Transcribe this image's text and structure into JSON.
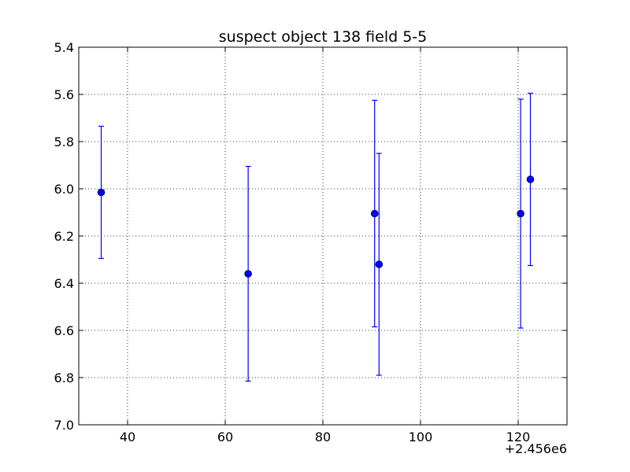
{
  "chart_data": {
    "type": "scatter",
    "title": "suspect object 138 field 5-5",
    "xlabel": "",
    "ylabel": "",
    "x_offset_label": "+2.456e6",
    "xlim": [
      30,
      130
    ],
    "ylim": [
      7.0,
      5.4
    ],
    "y_axis_inverted": true,
    "grid": true,
    "marker_color": "#0000ff",
    "x_ticks": [
      40,
      60,
      80,
      100,
      120
    ],
    "x_tick_labels": [
      "40",
      "60",
      "80",
      "100",
      "120"
    ],
    "y_ticks": [
      5.4,
      5.6,
      5.8,
      6.0,
      6.2,
      6.4,
      6.6,
      6.8,
      7.0
    ],
    "y_tick_labels": [
      "5.4",
      "5.6",
      "5.8",
      "6.0",
      "6.2",
      "6.4",
      "6.6",
      "6.8",
      "7.0"
    ],
    "points": [
      {
        "x": 34.6,
        "y": 6.015,
        "err": 0.28
      },
      {
        "x": 64.7,
        "y": 6.36,
        "err": 0.455
      },
      {
        "x": 90.6,
        "y": 6.105,
        "err": 0.48
      },
      {
        "x": 91.5,
        "y": 6.32,
        "err": 0.47
      },
      {
        "x": 120.5,
        "y": 6.105,
        "err": 0.485
      },
      {
        "x": 122.5,
        "y": 5.96,
        "err": 0.365
      }
    ]
  }
}
